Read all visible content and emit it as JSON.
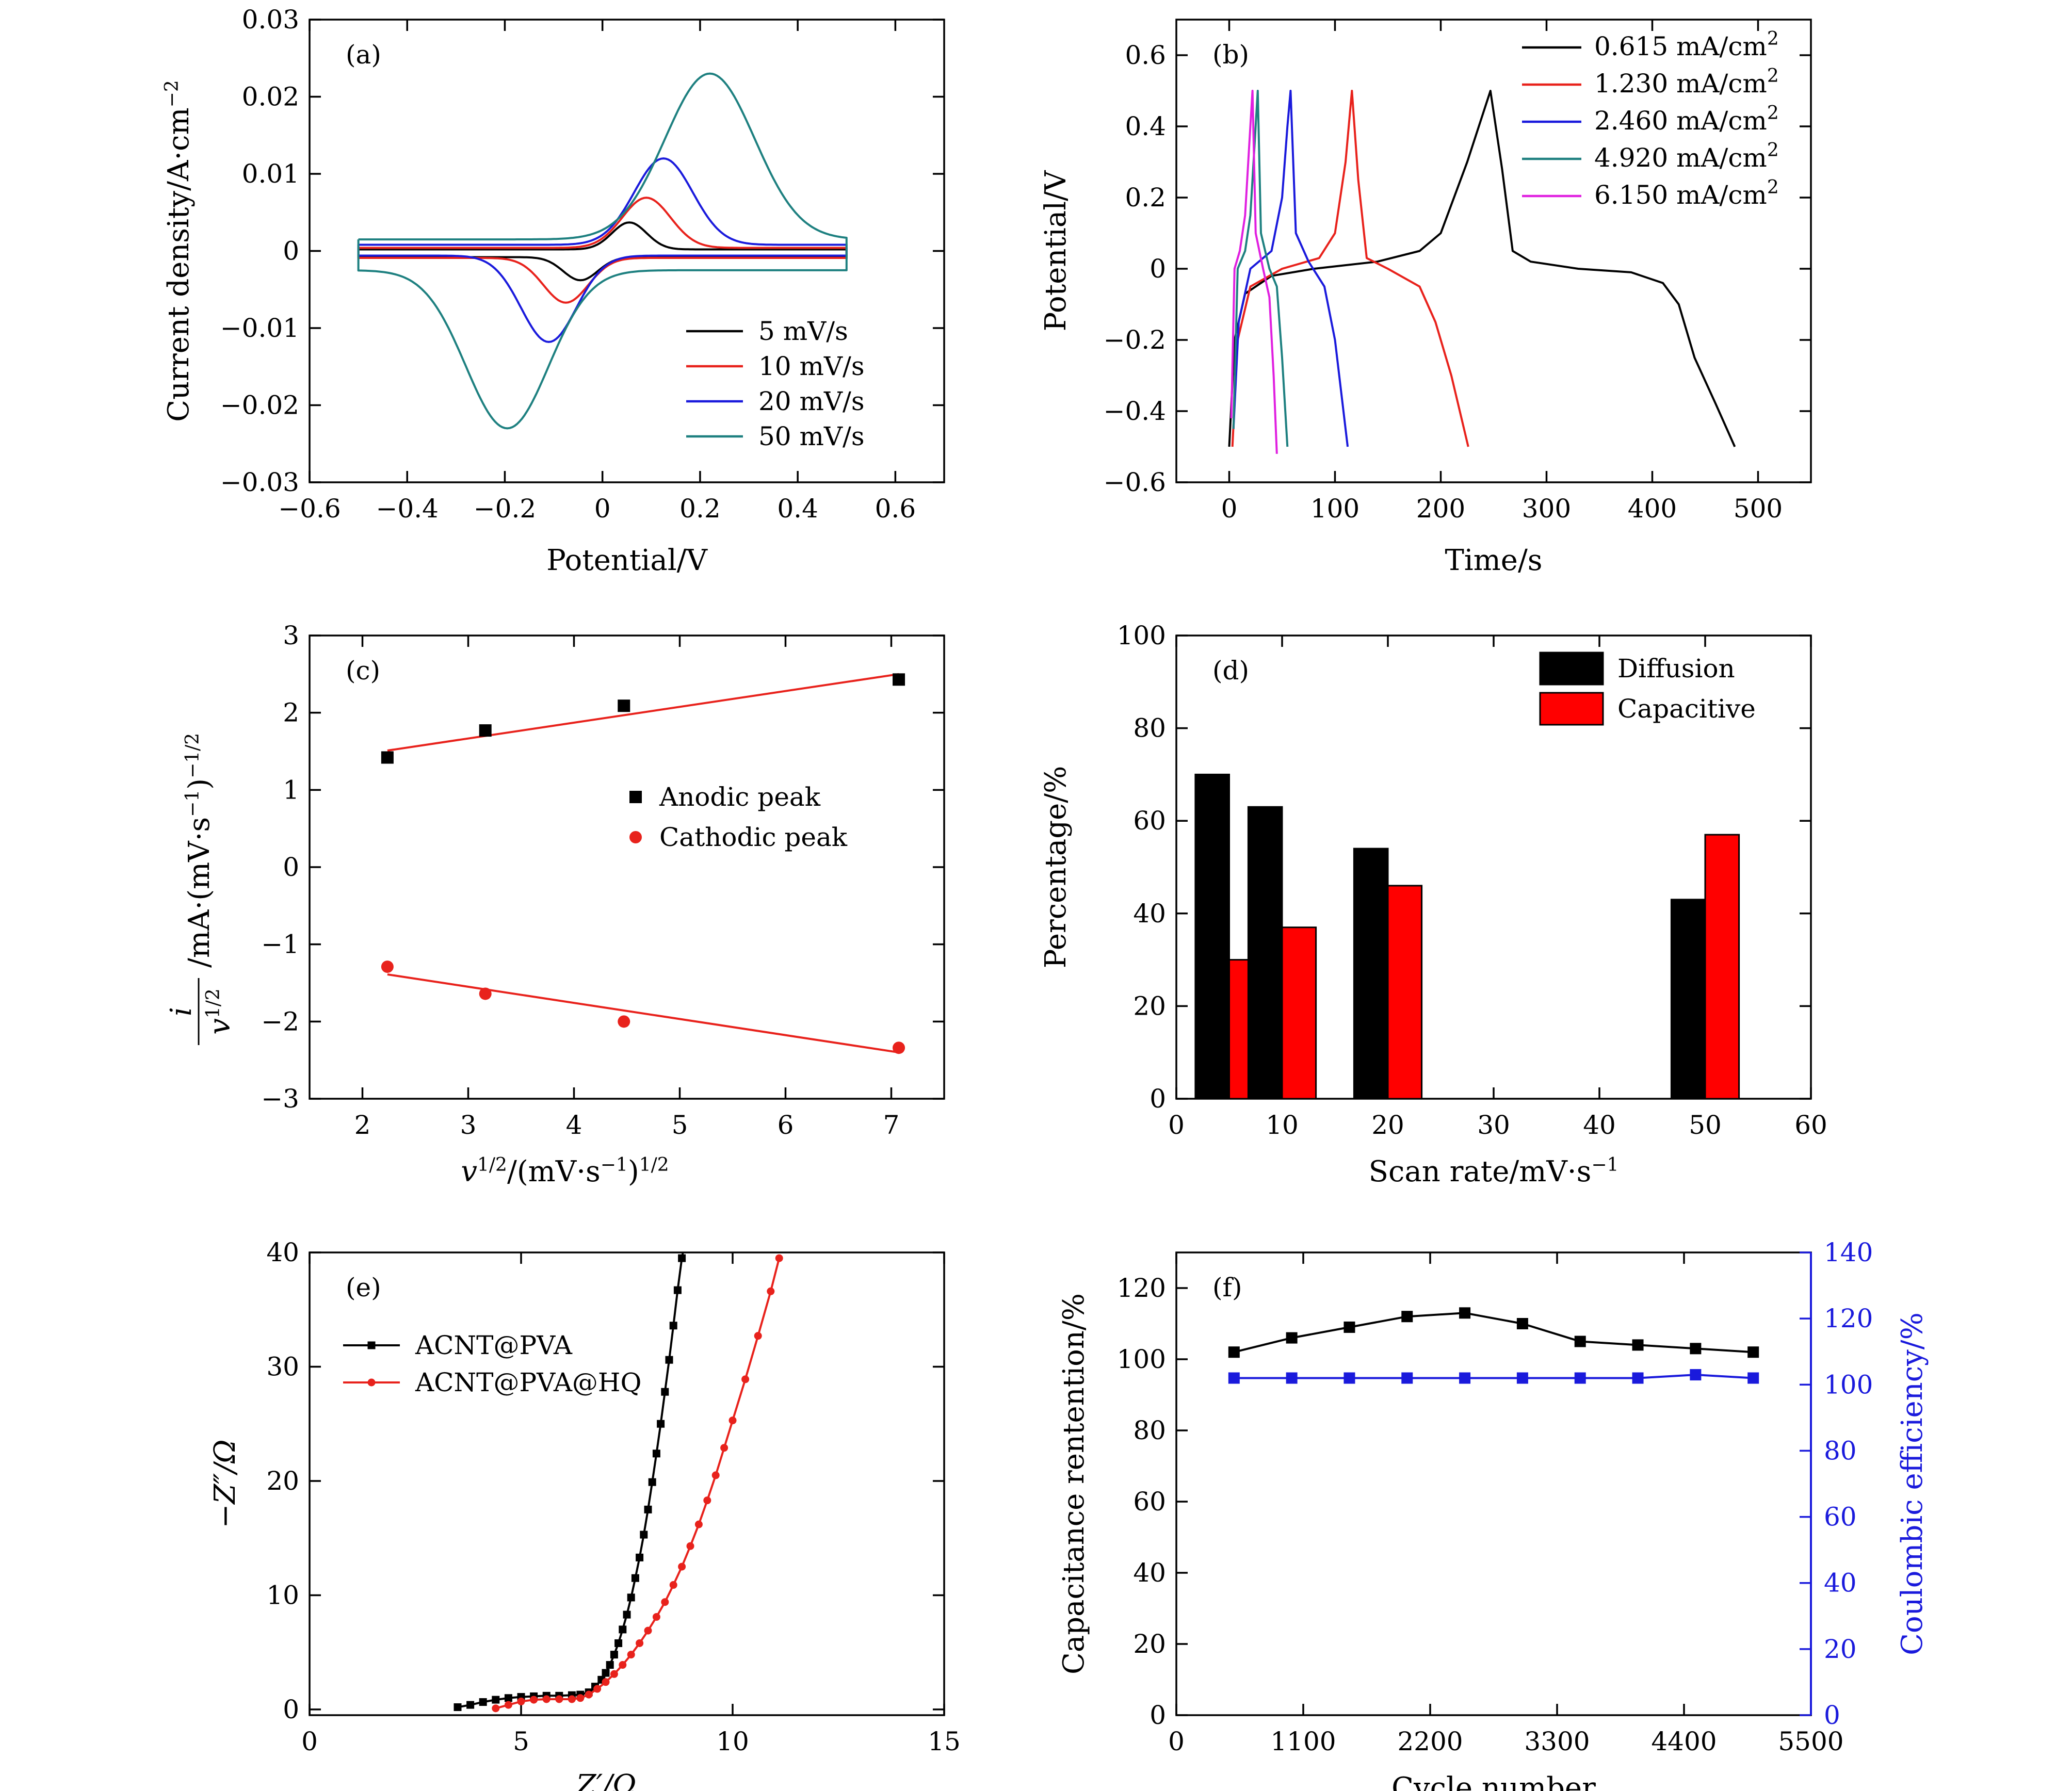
{
  "chart_data": [
    {
      "id": "a",
      "type": "line",
      "panel_label": "(a)",
      "xlabel": "Potential/V",
      "ylabel": "Current density/A·cm",
      "ylabel_sup": "−2",
      "xlim": [
        -0.6,
        0.7
      ],
      "ylim": [
        -0.03,
        0.03
      ],
      "xticks": [
        -0.6,
        -0.4,
        -0.2,
        0,
        0.2,
        0.4,
        0.6
      ],
      "xtick_labels": [
        "−0.6",
        "−0.4",
        "−0.2",
        "0",
        "0.2",
        "0.4",
        "0.6"
      ],
      "yticks": [
        -0.03,
        -0.02,
        -0.01,
        0,
        0.01,
        0.02,
        0.03
      ],
      "ytick_labels": [
        "−0.03",
        "−0.02",
        "−0.01",
        "0",
        "0.01",
        "0.02",
        "0.03"
      ],
      "legend_position": "bottom-right",
      "series": [
        {
          "name": "5 mV/s",
          "color": "#000000",
          "cv": {
            "base_a": 0.0002,
            "base_c": -0.0008,
            "pa": [
              0.055,
              0.0035,
              0.05
            ],
            "pc": [
              -0.045,
              -0.003,
              0.05
            ]
          }
        },
        {
          "name": "10 mV/s",
          "color": "#e8221c",
          "cv": {
            "base_a": 0.0004,
            "base_c": -0.0009,
            "pa": [
              0.09,
              0.0065,
              0.07
            ],
            "pc": [
              -0.075,
              -0.0058,
              0.065
            ]
          }
        },
        {
          "name": "20 mV/s",
          "color": "#1a1adc",
          "cv": {
            "base_a": 0.0008,
            "base_c": -0.0006,
            "pa": [
              0.125,
              0.0112,
              0.085
            ],
            "pc": [
              -0.11,
              -0.0112,
              0.08
            ]
          }
        },
        {
          "name": "50 mV/s",
          "color": "#1e8080",
          "cv": {
            "base_a": 0.0015,
            "base_c": -0.0025,
            "pa": [
              0.22,
              0.0215,
              0.13
            ],
            "pc": [
              -0.195,
              -0.0205,
              0.12
            ]
          }
        }
      ]
    },
    {
      "id": "b",
      "type": "line",
      "panel_label": "(b)",
      "xlabel": "Time/s",
      "ylabel": "Potential/V",
      "xlim": [
        -50,
        550
      ],
      "ylim": [
        -0.6,
        0.7
      ],
      "xticks": [
        0,
        100,
        200,
        300,
        400,
        500
      ],
      "xtick_labels": [
        "0",
        "100",
        "200",
        "300",
        "400",
        "500"
      ],
      "yticks": [
        -0.6,
        -0.4,
        -0.2,
        0,
        0.2,
        0.4,
        0.6
      ],
      "ytick_labels": [
        "−0.6",
        "−0.4",
        "−0.2",
        "0",
        "0.2",
        "0.4",
        "0.6"
      ],
      "legend_position": "top-right",
      "series": [
        {
          "name": "0.615 mA/cm",
          "unit_sup": "2",
          "color": "#000000",
          "x": [
            0,
            5,
            15,
            40,
            80,
            140,
            180,
            200,
            225,
            247,
            258,
            268,
            285,
            330,
            380,
            410,
            425,
            440,
            460,
            478
          ],
          "y": [
            -0.5,
            -0.2,
            -0.07,
            -0.02,
            0.0,
            0.02,
            0.05,
            0.1,
            0.3,
            0.5,
            0.28,
            0.05,
            0.02,
            0.0,
            -0.01,
            -0.04,
            -0.1,
            -0.25,
            -0.38,
            -0.5
          ]
        },
        {
          "name": "1.230 mA/cm",
          "unit_sup": "2",
          "color": "#e8221c",
          "x": [
            3,
            8,
            20,
            50,
            85,
            100,
            110,
            116,
            122,
            130,
            150,
            180,
            195,
            210,
            226
          ],
          "y": [
            -0.5,
            -0.2,
            -0.05,
            0.0,
            0.03,
            0.1,
            0.3,
            0.5,
            0.25,
            0.03,
            0.0,
            -0.05,
            -0.15,
            -0.3,
            -0.5
          ]
        },
        {
          "name": "2.460 mA/cm",
          "unit_sup": "2",
          "color": "#1a1adc",
          "x": [
            4,
            9,
            20,
            40,
            50,
            55,
            58,
            63,
            75,
            90,
            100,
            112
          ],
          "y": [
            -0.45,
            -0.15,
            0.0,
            0.05,
            0.2,
            0.4,
            0.5,
            0.1,
            0.02,
            -0.05,
            -0.2,
            -0.5
          ]
        },
        {
          "name": "4.920 mA/cm",
          "unit_sup": "2",
          "color": "#1e8080",
          "x": [
            4,
            8,
            15,
            20,
            24,
            27,
            30,
            38,
            45,
            50,
            55
          ],
          "y": [
            -0.45,
            0.0,
            0.05,
            0.15,
            0.35,
            0.5,
            0.1,
            0.0,
            -0.05,
            -0.25,
            -0.5
          ]
        },
        {
          "name": "6.150 mA/cm",
          "unit_sup": "2",
          "color": "#e020e0",
          "x": [
            2,
            5,
            10,
            15,
            19,
            22,
            25,
            32,
            38,
            42,
            45
          ],
          "y": [
            -0.42,
            0.0,
            0.05,
            0.15,
            0.35,
            0.5,
            0.1,
            0.0,
            -0.08,
            -0.3,
            -0.52
          ]
        }
      ]
    },
    {
      "id": "c",
      "type": "scatter",
      "panel_label": "(c)",
      "xlabel": "v",
      "xlabel_sup": "1/2",
      "xlabel_rest": "/(mV·s",
      "xlabel_sup2": "−1",
      "xlabel_end": ")",
      "xlabel_sup3": "1/2",
      "ylabel_num": "i",
      "ylabel_den": "v",
      "ylabel_den_sup": "1/2",
      "ylabel_rest": "/mA·(mV·s",
      "ylabel_sup": "−1",
      "ylabel_end": ")",
      "ylabel_sup2": "−1/2",
      "xlim": [
        1.5,
        7.5
      ],
      "ylim": [
        -3,
        3
      ],
      "xticks": [
        2,
        3,
        4,
        5,
        6,
        7
      ],
      "xtick_labels": [
        "2",
        "3",
        "4",
        "5",
        "6",
        "7"
      ],
      "yticks": [
        -3,
        -2,
        -1,
        0,
        1,
        2,
        3
      ],
      "ytick_labels": [
        "−3",
        "−2",
        "−1",
        "0",
        "1",
        "2",
        "3"
      ],
      "legend_position": "center-right",
      "series": [
        {
          "name": "Anodic peak",
          "marker": "square",
          "color": "#000000",
          "x": [
            2.236,
            3.162,
            4.472,
            7.071
          ],
          "y": [
            1.42,
            1.77,
            2.09,
            2.43
          ],
          "fit": [
            [
              2.236,
              1.51
            ],
            [
              7.071,
              2.5
            ]
          ],
          "fit_color": "#e8221c"
        },
        {
          "name": "Cathodic peak",
          "marker": "circle",
          "color": "#e8221c",
          "x": [
            2.236,
            3.162,
            4.472,
            7.071
          ],
          "y": [
            -1.29,
            -1.64,
            -2.0,
            -2.34
          ],
          "fit": [
            [
              2.236,
              -1.39
            ],
            [
              7.071,
              -2.4
            ]
          ],
          "fit_color": "#e8221c"
        }
      ]
    },
    {
      "id": "d",
      "type": "bar",
      "panel_label": "(d)",
      "xlabel": "Scan rate/mV·s",
      "xlabel_sup": "−1",
      "ylabel": "Percentage/%",
      "xlim": [
        0,
        60
      ],
      "ylim": [
        0,
        100
      ],
      "xticks": [
        0,
        10,
        20,
        30,
        40,
        50,
        60
      ],
      "xtick_labels": [
        "0",
        "10",
        "20",
        "30",
        "40",
        "50",
        "60"
      ],
      "yticks": [
        0,
        20,
        40,
        60,
        80,
        100
      ],
      "ytick_labels": [
        "0",
        "20",
        "40",
        "60",
        "80",
        "100"
      ],
      "legend_position": "top-right",
      "bar_width": 3.2,
      "x": [
        5,
        10,
        20,
        50
      ],
      "series": [
        {
          "name": "Diffusion",
          "color": "#000000",
          "values": [
            70,
            63,
            54,
            43
          ]
        },
        {
          "name": "Capacitive",
          "color": "#ff0000",
          "values": [
            30,
            37,
            46,
            57
          ]
        }
      ]
    },
    {
      "id": "e",
      "type": "line",
      "panel_label": "(e)",
      "xlabel": "Z′/Ω",
      "ylabel": "−Z″/Ω",
      "xlim": [
        0,
        15
      ],
      "ylim": [
        -0.5,
        40
      ],
      "xticks": [
        0,
        5,
        10,
        15
      ],
      "xtick_labels": [
        "0",
        "5",
        "10",
        "15"
      ],
      "yticks": [
        0,
        10,
        20,
        30,
        40
      ],
      "ytick_labels": [
        "0",
        "10",
        "20",
        "30",
        "40"
      ],
      "legend_position": "upper-left",
      "series": [
        {
          "name": "ACNT@PVA",
          "marker": "square",
          "color": "#000000",
          "x": [
            3.5,
            3.8,
            4.1,
            4.4,
            4.7,
            5.0,
            5.3,
            5.6,
            5.9,
            6.2,
            6.4,
            6.6,
            6.75,
            6.9,
            7.0,
            7.1,
            7.2,
            7.3,
            7.4,
            7.5,
            7.6,
            7.7,
            7.8,
            7.9,
            8.0,
            8.1,
            8.2,
            8.3,
            8.4,
            8.5,
            8.6,
            8.7,
            8.8,
            8.9
          ],
          "y": [
            0.2,
            0.4,
            0.65,
            0.85,
            1.0,
            1.1,
            1.15,
            1.2,
            1.2,
            1.25,
            1.3,
            1.5,
            2.0,
            2.6,
            3.2,
            3.9,
            4.8,
            5.8,
            7.0,
            8.3,
            9.8,
            11.5,
            13.3,
            15.3,
            17.5,
            19.9,
            22.4,
            25.0,
            27.8,
            30.6,
            33.6,
            36.7,
            39.5,
            41.5
          ]
        },
        {
          "name": "ACNT@PVA@HQ",
          "marker": "circle",
          "color": "#e8221c",
          "x": [
            4.4,
            4.7,
            5.0,
            5.3,
            5.6,
            5.9,
            6.2,
            6.4,
            6.6,
            6.8,
            7.0,
            7.2,
            7.4,
            7.6,
            7.8,
            8.0,
            8.2,
            8.4,
            8.6,
            8.8,
            9.0,
            9.2,
            9.4,
            9.6,
            9.8,
            10.0,
            10.3,
            10.6,
            10.9,
            11.1
          ],
          "y": [
            0.1,
            0.4,
            0.7,
            0.85,
            0.9,
            0.9,
            0.9,
            1.0,
            1.3,
            1.8,
            2.4,
            3.1,
            3.9,
            4.8,
            5.8,
            6.9,
            8.1,
            9.4,
            10.9,
            12.5,
            14.3,
            16.2,
            18.3,
            20.5,
            22.9,
            25.3,
            28.9,
            32.7,
            36.6,
            39.5
          ]
        }
      ]
    },
    {
      "id": "f",
      "type": "line",
      "panel_label": "(f)",
      "xlabel": "Cycle number",
      "ylabel": "Capacitance rentention/%",
      "ylabel_right": "Coulombic efficiency/%",
      "xlim": [
        0,
        5500
      ],
      "ylim": [
        0,
        130
      ],
      "ylim_right": [
        0,
        140
      ],
      "xticks": [
        0,
        1100,
        2200,
        3300,
        4400,
        5500
      ],
      "xtick_labels": [
        "0",
        "1100",
        "2200",
        "3300",
        "4400",
        "5500"
      ],
      "yticks": [
        0,
        20,
        40,
        60,
        80,
        100,
        120
      ],
      "ytick_labels": [
        "0",
        "20",
        "40",
        "60",
        "80",
        "100",
        "120"
      ],
      "yticks_right": [
        0,
        20,
        40,
        60,
        80,
        100,
        120,
        140
      ],
      "ytick_labels_right": [
        "0",
        "20",
        "40",
        "60",
        "80",
        "100",
        "120",
        "140"
      ],
      "right_axis_color": "#1a1adc",
      "series": [
        {
          "name": "Capacitance retention",
          "axis": "left",
          "marker": "square",
          "color": "#000000",
          "x": [
            500,
            1000,
            1500,
            2000,
            2500,
            3000,
            3500,
            4000,
            4500,
            5000
          ],
          "y": [
            102,
            106,
            109,
            112,
            113,
            110,
            105,
            104,
            103,
            102
          ]
        },
        {
          "name": "Coulombic efficiency",
          "axis": "right",
          "marker": "square",
          "color": "#1a1adc",
          "x": [
            500,
            1000,
            1500,
            2000,
            2500,
            3000,
            3500,
            4000,
            4500,
            5000
          ],
          "y": [
            102,
            102,
            102,
            102,
            102,
            102,
            102,
            102,
            103,
            102
          ]
        }
      ]
    }
  ]
}
